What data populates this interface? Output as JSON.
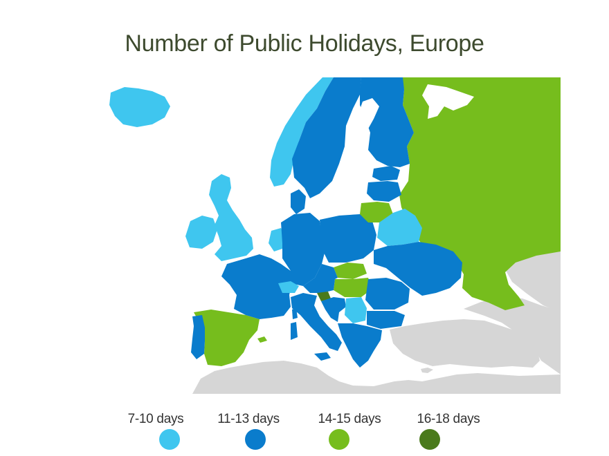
{
  "title": "Number of Public Holidays, Europe",
  "colors": {
    "light_blue": "#3fc6ef",
    "blue": "#0a7ccc",
    "green": "#76bd1d",
    "dark_green": "#4a7a1c",
    "non_europe": "#d6d6d6",
    "water": "#ffffff"
  },
  "legend": [
    {
      "label": "7-10 days",
      "color": "#3fc6ef"
    },
    {
      "label": "11-13 days",
      "color": "#0a7ccc"
    },
    {
      "label": "14-15 days",
      "color": "#76bd1d"
    },
    {
      "label": "16-18 days",
      "color": "#4a7a1c"
    }
  ],
  "regions": [
    {
      "name": "Iceland",
      "category": "7-10 days"
    },
    {
      "name": "Norway",
      "category": "7-10 days"
    },
    {
      "name": "United Kingdom",
      "category": "7-10 days"
    },
    {
      "name": "Ireland",
      "category": "7-10 days"
    },
    {
      "name": "Netherlands",
      "category": "7-10 days"
    },
    {
      "name": "Switzerland",
      "category": "7-10 days"
    },
    {
      "name": "Belarus",
      "category": "7-10 days"
    },
    {
      "name": "Serbia",
      "category": "7-10 days"
    },
    {
      "name": "Sweden",
      "category": "11-13 days"
    },
    {
      "name": "Finland",
      "category": "11-13 days"
    },
    {
      "name": "Denmark",
      "category": "11-13 days"
    },
    {
      "name": "Estonia",
      "category": "11-13 days"
    },
    {
      "name": "Latvia",
      "category": "11-13 days"
    },
    {
      "name": "France",
      "category": "11-13 days"
    },
    {
      "name": "Germany",
      "category": "11-13 days"
    },
    {
      "name": "Poland",
      "category": "11-13 days"
    },
    {
      "name": "Ukraine",
      "category": "11-13 days"
    },
    {
      "name": "Romania",
      "category": "11-13 days"
    },
    {
      "name": "Italy",
      "category": "11-13 days"
    },
    {
      "name": "Portugal",
      "category": "11-13 days"
    },
    {
      "name": "Greece",
      "category": "11-13 days"
    },
    {
      "name": "Croatia",
      "category": "11-13 days"
    },
    {
      "name": "Bulgaria",
      "category": "11-13 days"
    },
    {
      "name": "Russia",
      "category": "14-15 days"
    },
    {
      "name": "Spain",
      "category": "14-15 days"
    },
    {
      "name": "Lithuania",
      "category": "14-15 days"
    },
    {
      "name": "Slovakia",
      "category": "14-15 days"
    },
    {
      "name": "Hungary",
      "category": "14-15 days"
    },
    {
      "name": "Slovenia",
      "category": "16-18 days"
    }
  ]
}
